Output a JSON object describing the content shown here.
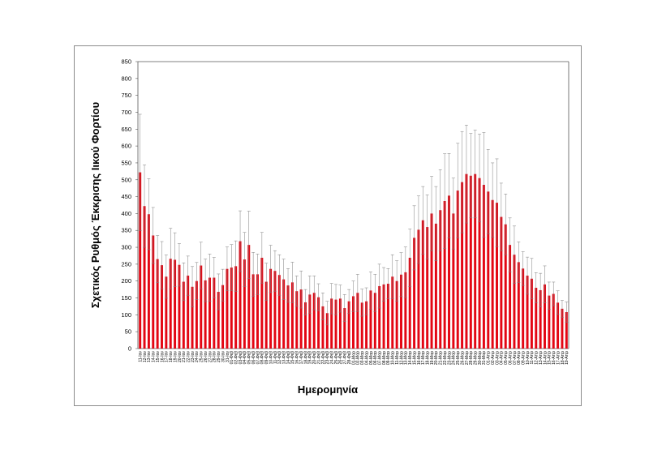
{
  "chart_data": {
    "type": "bar",
    "xlabel": "Ημερομηνία",
    "ylabel": "Σχετικός Ρυθμός Έκκρισης Ιικού Φορτίου",
    "ylim": [
      0,
      850
    ],
    "yticks": [
      0,
      50,
      100,
      150,
      200,
      250,
      300,
      350,
      400,
      450,
      500,
      550,
      600,
      650,
      700,
      750,
      800,
      850
    ],
    "grid": false,
    "legend": "none",
    "bar_color": "#e30613",
    "categories": [
      "11-Ιαν",
      "12-Ιαν",
      "13-Ιαν",
      "14-Ιαν",
      "15-Ιαν",
      "16-Ιαν",
      "17-Ιαν",
      "18-Ιαν",
      "19-Ιαν",
      "20-Ιαν",
      "21-Ιαν",
      "22-Ιαν",
      "23-Ιαν",
      "24-Ιαν",
      "25-Ιαν",
      "26-Ιαν",
      "27-Ιαν",
      "28-Ιαν",
      "29-Ιαν",
      "30-Ιαν",
      "31-Ιαν",
      "01-Φεβ",
      "02-Φεβ",
      "03-Φεβ",
      "04-Φεβ",
      "05-Φεβ",
      "06-Φεβ",
      "07-Φεβ",
      "08-Φεβ",
      "09-Φεβ",
      "10-Φεβ",
      "11-Φεβ",
      "12-Φεβ",
      "13-Φεβ",
      "14-Φεβ",
      "15-Φεβ",
      "16-Φεβ",
      "17-Φεβ",
      "18-Φεβ",
      "19-Φεβ",
      "20-Φεβ",
      "21-Φεβ",
      "22-Φεβ",
      "23-Φεβ",
      "24-Φεβ",
      "25-Φεβ",
      "26-Φεβ",
      "27-Φεβ",
      "28-Φεβ",
      "01-Μαρ",
      "02-Μαρ",
      "03-Μαρ",
      "04-Μαρ",
      "05-Μαρ",
      "06-Μαρ",
      "07-Μαρ",
      "08-Μαρ",
      "09-Μαρ",
      "10-Μαρ",
      "11-Μαρ",
      "12-Μαρ",
      "13-Μαρ",
      "14-Μαρ",
      "15-Μαρ",
      "16-Μαρ",
      "17-Μαρ",
      "18-Μαρ",
      "19-Μαρ",
      "20-Μαρ",
      "21-Μαρ",
      "22-Μαρ",
      "23-Μαρ",
      "24-Μαρ",
      "25-Μαρ",
      "26-Μαρ",
      "27-Μαρ",
      "28-Μαρ",
      "29-Μαρ",
      "30-Μαρ",
      "31-Μαρ",
      "01-Απρ",
      "02-Απρ",
      "03-Απρ",
      "04-Απρ",
      "05-Απρ",
      "06-Απρ",
      "07-Απρ",
      "08-Απρ",
      "09-Απρ",
      "10-Απρ",
      "11-Απρ",
      "12-Απρ",
      "13-Απρ",
      "14-Απρ",
      "15-Απρ",
      "16-Απρ",
      "17-Απρ",
      "18-Απρ",
      "19-Απρ"
    ],
    "values": [
      522,
      422,
      398,
      335,
      265,
      247,
      213,
      266,
      263,
      248,
      198,
      216,
      183,
      200,
      246,
      202,
      210,
      210,
      168,
      188,
      236,
      240,
      244,
      318,
      264,
      307,
      220,
      220,
      269,
      198,
      236,
      230,
      218,
      205,
      187,
      196,
      170,
      175,
      137,
      160,
      165,
      152,
      125,
      105,
      148,
      145,
      148,
      120,
      140,
      155,
      165,
      136,
      140,
      172,
      165,
      185,
      190,
      192,
      213,
      200,
      219,
      226,
      269,
      328,
      352,
      380,
      360,
      400,
      370,
      410,
      437,
      453,
      400,
      468,
      493,
      517,
      512,
      517,
      505,
      485,
      465,
      440,
      432,
      390,
      368,
      307,
      278,
      256,
      237,
      216,
      207,
      180,
      173,
      190,
      157,
      162,
      136,
      118,
      108
    ],
    "errors": [
      172,
      122,
      105,
      83,
      70,
      70,
      64,
      90,
      80,
      63,
      56,
      58,
      60,
      55,
      69,
      63,
      70,
      60,
      53,
      47,
      65,
      68,
      75,
      90,
      80,
      100,
      65,
      60,
      75,
      55,
      70,
      60,
      60,
      60,
      50,
      60,
      45,
      55,
      38,
      55,
      50,
      40,
      40,
      35,
      45,
      45,
      40,
      40,
      35,
      45,
      55,
      40,
      40,
      55,
      55,
      65,
      50,
      45,
      65,
      60,
      65,
      75,
      85,
      95,
      100,
      100,
      95,
      110,
      110,
      120,
      140,
      125,
      105,
      140,
      150,
      145,
      125,
      130,
      130,
      155,
      125,
      110,
      130,
      100,
      90,
      80,
      85,
      60,
      50,
      55,
      60,
      45,
      50,
      55,
      40,
      35,
      35,
      25,
      30
    ]
  }
}
